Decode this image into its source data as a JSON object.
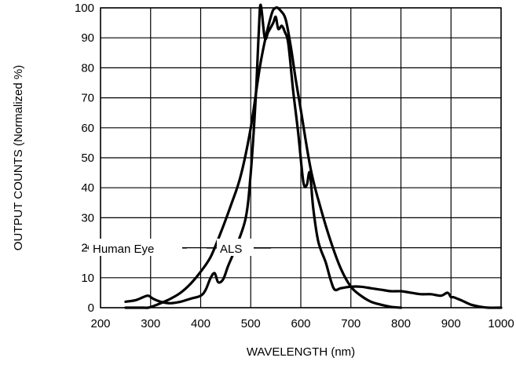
{
  "chart_data": {
    "type": "line",
    "title": "",
    "xlabel": "WAVELENGTH (nm)",
    "ylabel": "OUTPUT COUNTS (Normalized %)",
    "xlim": [
      200,
      1000
    ],
    "ylim": [
      0,
      100
    ],
    "xticks": [
      200,
      300,
      400,
      500,
      600,
      700,
      800,
      900,
      1000
    ],
    "yticks": [
      0,
      10,
      20,
      30,
      40,
      50,
      60,
      70,
      80,
      90,
      100
    ],
    "grid": true,
    "annotations": [
      {
        "text": "Human Eye",
        "series": 0
      },
      {
        "text": "ALS",
        "series": 1
      }
    ],
    "series": [
      {
        "x": [
          250,
          270,
          285,
          295,
          305,
          320,
          340,
          360,
          380,
          400,
          420,
          440,
          460,
          480,
          500,
          520,
          540,
          550,
          560,
          570,
          580,
          590,
          600,
          620,
          640,
          660,
          680,
          700,
          720,
          740,
          760,
          780,
          800
        ],
        "y": [
          0,
          0,
          0,
          0,
          0.5,
          1.5,
          3,
          5,
          8,
          12,
          17,
          25,
          34,
          44,
          60,
          82,
          97,
          100,
          99,
          96,
          87,
          76,
          66,
          46,
          33,
          22,
          13,
          7,
          4,
          2,
          1,
          0.3,
          0
        ]
      },
      {
        "x": [
          250,
          270,
          285,
          295,
          305,
          320,
          340,
          360,
          380,
          400,
          410,
          420,
          428,
          435,
          445,
          455,
          470,
          490,
          500,
          510,
          516,
          520,
          528,
          535,
          545,
          550,
          555,
          562,
          568,
          575,
          585,
          595,
          605,
          612,
          618,
          625,
          635,
          650,
          660,
          668,
          680,
          700,
          720,
          740,
          760,
          780,
          800,
          820,
          840,
          860,
          880,
          893,
          900,
          905,
          920,
          940,
          960,
          975,
          1000
        ],
        "y": [
          2,
          2.5,
          3.5,
          4,
          3,
          2,
          1.5,
          2,
          3,
          4,
          6,
          10,
          11.5,
          8.5,
          9.5,
          14,
          20,
          30,
          45,
          70,
          92,
          101,
          90,
          92,
          95,
          97,
          93,
          94,
          92,
          88,
          72,
          58,
          42,
          41,
          45,
          33,
          22,
          15,
          9,
          6,
          6.5,
          7,
          7,
          6.5,
          6,
          5.5,
          5.5,
          5,
          4.5,
          4.5,
          4,
          5,
          3.5,
          3.5,
          2.5,
          1,
          0.3,
          0,
          0
        ]
      }
    ]
  }
}
